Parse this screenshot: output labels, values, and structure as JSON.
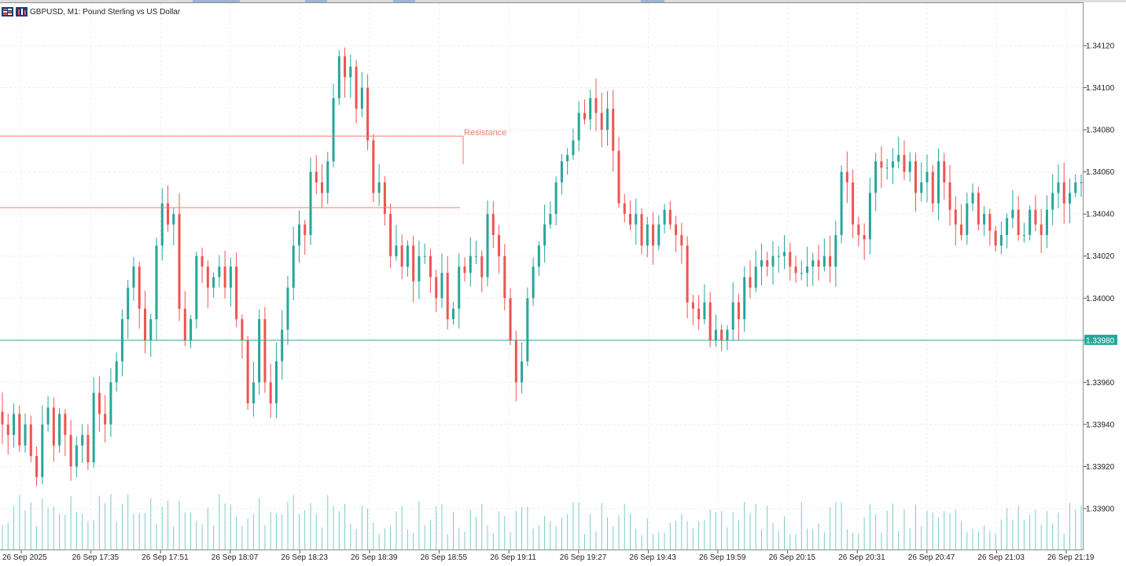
{
  "header": {
    "title": "GBPUSD, M1:  Pound Sterling vs US Dollar"
  },
  "colors": {
    "bull": "#26a69a",
    "bear": "#ef5350",
    "grid": "#eeeeee",
    "resistance": "#f47a70",
    "current_line": "#26a69a",
    "volume": "#7ccbc2"
  },
  "chart_data": {
    "type": "candlestick",
    "symbol": "GBPUSD",
    "timeframe": "M1",
    "ylim": [
      1.3388,
      1.3414
    ],
    "y_ticks": [
      "1.34120",
      "1.34100",
      "1.34080",
      "1.34060",
      "1.34040",
      "1.34020",
      "1.34000",
      "1.33980",
      "1.33960",
      "1.33940",
      "1.33920",
      "1.33900"
    ],
    "x_ticks": [
      "26 Sep 2025",
      "26 Sep 17:35",
      "26 Sep 17:51",
      "26 Sep 18:07",
      "26 Sep 18:23",
      "26 Sep 18:39",
      "26 Sep 18:55",
      "26 Sep 19:11",
      "26 Sep 19:27",
      "26 Sep 19:43",
      "26 Sep 19:59",
      "26 Sep 20:15",
      "26 Sep 20:31",
      "26 Sep 20:47",
      "26 Sep 21:03",
      "26 Sep 21:19"
    ],
    "current_price": "1.33980",
    "annotations": [
      {
        "text": "Resistance",
        "price": 1.34077
      }
    ],
    "horizontal_lines": [
      {
        "price": 1.34077,
        "role": "resistance"
      },
      {
        "price": 1.34043,
        "role": "resistance"
      },
      {
        "price": 1.3398,
        "role": "current"
      }
    ],
    "candle_closes": [
      1.3394,
      1.33935,
      1.33945,
      1.3393,
      1.3394,
      1.33925,
      1.33915,
      1.3394,
      1.33948,
      1.3393,
      1.33945,
      1.33935,
      1.3392,
      1.3393,
      1.33935,
      1.33922,
      1.33955,
      1.33945,
      1.3394,
      1.3396,
      1.3397,
      1.3399,
      1.34005,
      1.34015,
      1.33995,
      1.3398,
      1.3399,
      1.34025,
      1.34045,
      1.34035,
      1.3404,
      1.33995,
      1.3398,
      1.3399,
      1.3402,
      1.34015,
      1.34005,
      1.3401,
      1.34015,
      1.34005,
      1.34015,
      1.3399,
      1.3398,
      1.3395,
      1.3396,
      1.3399,
      1.3396,
      1.3395,
      1.3397,
      1.33985,
      1.34005,
      1.34025,
      1.34035,
      1.3403,
      1.3406,
      1.34055,
      1.3405,
      1.34065,
      1.34095,
      1.34115,
      1.34105,
      1.3411,
      1.3409,
      1.341,
      1.34075,
      1.3405,
      1.34055,
      1.3404,
      1.3402,
      1.34025,
      1.34015,
      1.34025,
      1.34008,
      1.3402,
      1.3402,
      1.3401,
      1.34,
      1.34012,
      1.3399,
      1.33995,
      1.34015,
      1.34012,
      1.3402,
      1.3402,
      1.3401,
      1.3404,
      1.3403,
      1.3402,
      1.34,
      1.3398,
      1.3396,
      1.3397,
      1.34,
      1.34015,
      1.34025,
      1.34035,
      1.3404,
      1.34055,
      1.34065,
      1.34068,
      1.34075,
      1.34088,
      1.34085,
      1.34095,
      1.34088,
      1.3408,
      1.3409,
      1.3407,
      1.34045,
      1.3404,
      1.34035,
      1.3404,
      1.34025,
      1.34035,
      1.34025,
      1.34035,
      1.34042,
      1.34035,
      1.3403,
      1.34025,
      1.33998,
      1.33995,
      1.3399,
      1.33998,
      1.3398,
      1.33985,
      1.3398,
      1.33985,
      1.33998,
      1.3399,
      1.3401,
      1.34005,
      1.34015,
      1.34018,
      1.34015,
      1.3402,
      1.3402,
      1.34022,
      1.34015,
      1.34012,
      1.34012,
      1.34015,
      1.34018,
      1.34015,
      1.3402,
      1.34015,
      1.3403,
      1.3406,
      1.34055,
      1.34035,
      1.3403,
      1.34028,
      1.3405,
      1.34065,
      1.34062,
      1.34062,
      1.34065,
      1.34068,
      1.3406,
      1.34065,
      1.3405,
      1.34055,
      1.3406,
      1.34045,
      1.34065,
      1.34055,
      1.34042,
      1.34035,
      1.3403,
      1.34045,
      1.3405,
      1.34035,
      1.3404,
      1.34032,
      1.34025,
      1.3403,
      1.34038,
      1.34042,
      1.3403,
      1.3403,
      1.34042,
      1.34035,
      1.3403,
      1.34042,
      1.3405,
      1.34055,
      1.34045,
      1.3405,
      1.34055,
      1.34055
    ]
  }
}
